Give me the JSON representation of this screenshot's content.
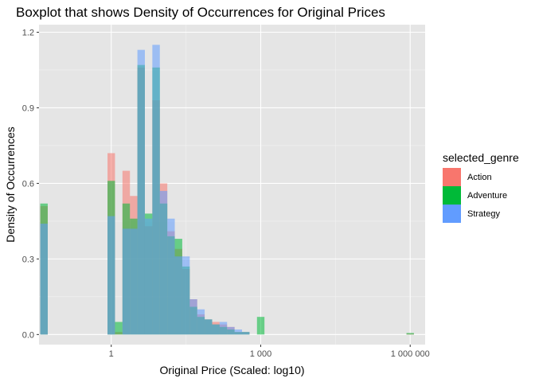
{
  "chart_data": {
    "type": "histogram",
    "title": "Boxplot that shows Density of Occurrences for Original Prices",
    "xlabel": "Original Price (Scaled: log10)",
    "ylabel": "Density of Occurrences",
    "x_scale": "log10",
    "xlim": [
      -1.45,
      6.3
    ],
    "ylim": [
      -0.04,
      1.23
    ],
    "x_ticks": [
      {
        "value": 0,
        "label": "1"
      },
      {
        "value": 3,
        "label": "1 000"
      },
      {
        "value": 6,
        "label": "1 000 000"
      }
    ],
    "y_ticks": [
      {
        "value": 0,
        "label": "0.0"
      },
      {
        "value": 0.3,
        "label": "0.3"
      },
      {
        "value": 0.6,
        "label": "0.6"
      },
      {
        "value": 0.9,
        "label": "0.9"
      },
      {
        "value": 1.2,
        "label": "1.2"
      }
    ],
    "x_minor_breaks": [
      -1.5,
      1.5,
      4.5
    ],
    "y_minor_breaks": [
      0.15,
      0.45,
      0.75,
      1.05
    ],
    "grid": true,
    "panel_background": "#e5e5e5",
    "bin_width": 0.15,
    "legend": {
      "title": "selected_genre",
      "position": "right",
      "entries": [
        {
          "label": "Action",
          "color": "#f8766d"
        },
        {
          "label": "Adventure",
          "color": "#00ba38"
        },
        {
          "label": "Strategy",
          "color": "#619cff"
        }
      ]
    },
    "series": [
      {
        "name": "Action",
        "color": "#f8766d",
        "x": [
          -1.95,
          -1.8,
          -1.35,
          -0.15,
          0,
          0.15,
          0.3,
          0.45,
          0.6,
          0.75,
          0.9,
          1.05,
          1.2,
          1.35,
          1.5,
          1.65,
          1.8,
          1.95,
          2.1,
          2.25,
          2.4,
          2.55,
          2.7,
          2.85,
          3.0,
          3.15,
          6.0
        ],
        "values": [
          0.05,
          0.02,
          0.51,
          0.0,
          0.72,
          0.01,
          0.65,
          0.55,
          1.06,
          0.43,
          0.93,
          0.6,
          0.41,
          0.34,
          0.26,
          0.14,
          0.08,
          0.06,
          0.05,
          0.04,
          0.03,
          0.01,
          0.01,
          0.0,
          0.0,
          0.0,
          0.004
        ]
      },
      {
        "name": "Adventure",
        "color": "#00ba38",
        "x": [
          -1.95,
          -1.8,
          -1.35,
          0,
          0.15,
          0.3,
          0.45,
          0.6,
          0.75,
          0.9,
          1.05,
          1.2,
          1.35,
          1.5,
          1.65,
          1.8,
          1.95,
          2.1,
          2.25,
          2.4,
          2.55,
          2.7,
          2.85,
          3.0,
          3.15,
          6.0
        ],
        "values": [
          0.05,
          0.02,
          0.52,
          0.61,
          0.05,
          0.52,
          0.46,
          1.07,
          0.48,
          1.06,
          0.52,
          0.39,
          0.38,
          0.27,
          0.11,
          0.07,
          0.06,
          0.04,
          0.03,
          0.02,
          0.01,
          0.01,
          0.0,
          0.07,
          0.0,
          0.006
        ]
      },
      {
        "name": "Strategy",
        "color": "#619cff",
        "x": [
          -1.95,
          -1.8,
          -1.35,
          0,
          0.15,
          0.3,
          0.45,
          0.6,
          0.75,
          0.9,
          1.05,
          1.2,
          1.35,
          1.5,
          1.65,
          1.8,
          1.95,
          2.1,
          2.25,
          2.4,
          2.55,
          2.7,
          2.85,
          3.0,
          3.15
        ],
        "values": [
          0.03,
          0.02,
          0.44,
          0.47,
          0.0,
          0.42,
          0.42,
          1.13,
          0.46,
          1.15,
          0.57,
          0.46,
          0.31,
          0.31,
          0.14,
          0.1,
          0.06,
          0.04,
          0.05,
          0.03,
          0.02,
          0.01,
          0.0,
          0.0,
          0.0
        ]
      }
    ]
  }
}
